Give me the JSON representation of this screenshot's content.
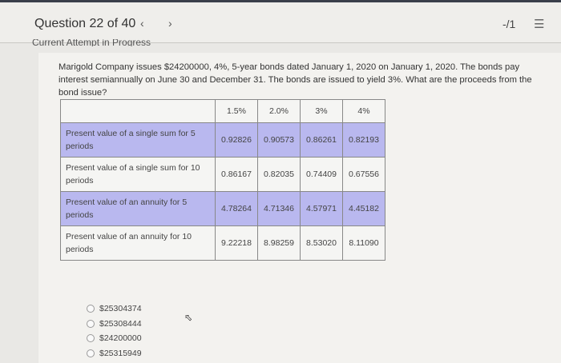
{
  "header": {
    "question_label": "Question 22 of 40",
    "prev_icon": "chevron-left",
    "next_icon": "chevron-right",
    "score": "-/1",
    "menu_icon": "list-icon"
  },
  "attempt_label": "Current Attempt in Progress",
  "question_text": "Marigold Company issues $24200000, 4%, 5-year bonds dated January 1, 2020 on January 1, 2020. The bonds pay interest semiannually on June 30 and December 31. The bonds are issued to yield 3%. What are the proceeds from the bond issue?",
  "table": {
    "columns": [
      "",
      "1.5%",
      "2.0%",
      "3%",
      "4%"
    ],
    "rows": [
      {
        "label": "Present value of a single sum for 5 periods",
        "values": [
          "0.92826",
          "0.90573",
          "0.86261",
          "0.82193"
        ]
      },
      {
        "label": "Present value of a single sum for 10 periods",
        "values": [
          "0.86167",
          "0.82035",
          "0.74409",
          "0.67556"
        ]
      },
      {
        "label": "Present value of an annuity for 5 periods",
        "values": [
          "4.78264",
          "4.71346",
          "4.57971",
          "4.45182"
        ]
      },
      {
        "label": "Present value of an annuity for 10 periods",
        "values": [
          "9.22218",
          "8.98259",
          "8.53020",
          "8.11090"
        ]
      }
    ],
    "highlight_color": "#b9b8ef"
  },
  "options": [
    "$25304374",
    "$25308444",
    "$24200000",
    "$25315949"
  ]
}
